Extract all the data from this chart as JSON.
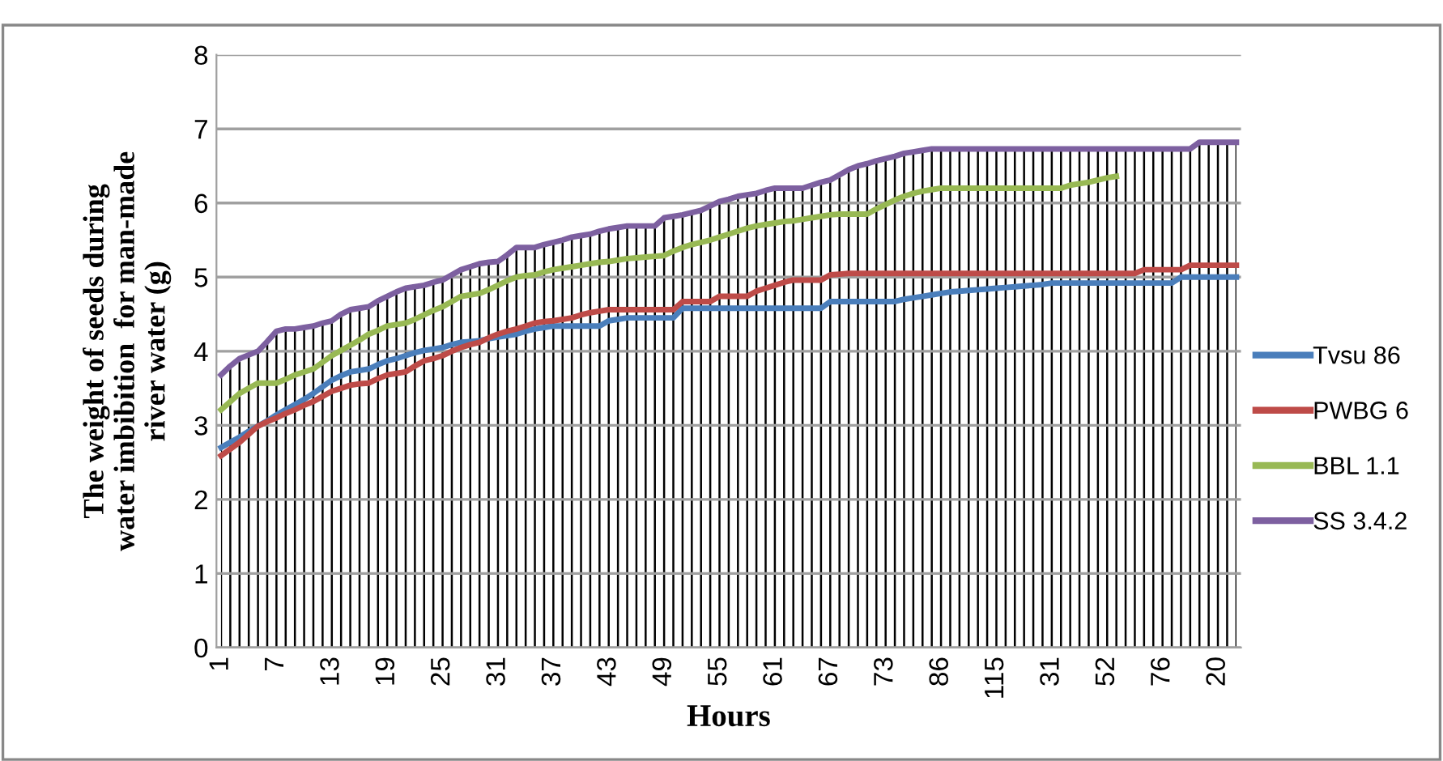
{
  "chart_data": {
    "type": "line",
    "xlabel": "Hours",
    "ylabel": "The weight of seeds during\nwater imbibition  for man-made\nriver water (g)",
    "categories": [
      "1",
      null,
      null,
      null,
      null,
      null,
      "7",
      null,
      null,
      null,
      null,
      null,
      "13",
      null,
      null,
      null,
      null,
      null,
      "19",
      null,
      null,
      null,
      null,
      null,
      "25",
      null,
      null,
      null,
      null,
      null,
      "31",
      null,
      null,
      null,
      null,
      null,
      "37",
      null,
      null,
      null,
      null,
      null,
      "43",
      null,
      null,
      null,
      null,
      null,
      "49",
      null,
      null,
      null,
      null,
      null,
      "55",
      null,
      null,
      null,
      null,
      null,
      "61",
      null,
      null,
      null,
      null,
      null,
      "67",
      null,
      null,
      null,
      null,
      null,
      "73",
      null,
      null,
      null,
      null,
      null,
      "86",
      null,
      null,
      null,
      null,
      null,
      "115",
      null,
      null,
      null,
      null,
      null,
      "31",
      null,
      null,
      null,
      null,
      null,
      "52",
      null,
      null,
      null,
      null,
      null,
      "76",
      null,
      null,
      null,
      null,
      null,
      "20",
      null,
      null
    ],
    "series": [
      {
        "name": "Tvsu 86",
        "color": "#4a7ebb",
        "values": [
          2.7,
          2.77,
          2.84,
          2.92,
          2.99,
          3.06,
          3.14,
          3.21,
          3.28,
          3.35,
          3.43,
          3.52,
          3.61,
          3.67,
          3.72,
          3.74,
          3.76,
          3.82,
          3.87,
          3.9,
          3.94,
          3.98,
          4.01,
          4.03,
          4.05,
          4.09,
          4.12,
          4.13,
          4.14,
          4.17,
          4.19,
          4.21,
          4.23,
          4.27,
          4.3,
          4.32,
          4.34,
          4.34,
          4.34,
          4.34,
          4.34,
          4.34,
          4.41,
          4.43,
          4.45,
          4.45,
          4.45,
          4.45,
          4.45,
          4.45,
          4.58,
          4.58,
          4.58,
          4.58,
          4.58,
          4.58,
          4.58,
          4.58,
          4.58,
          4.58,
          4.58,
          4.58,
          4.58,
          4.58,
          4.58,
          4.58,
          4.67,
          4.67,
          4.67,
          4.67,
          4.67,
          4.67,
          4.67,
          4.67,
          4.7,
          4.72,
          4.74,
          4.76,
          4.78,
          4.8,
          4.81,
          4.82,
          4.83,
          4.84,
          4.85,
          4.86,
          4.87,
          4.88,
          4.89,
          4.9,
          4.92,
          4.92,
          4.92,
          4.92,
          4.92,
          4.92,
          4.92,
          4.92,
          4.92,
          4.92,
          4.92,
          4.92,
          4.92,
          4.92,
          5.0,
          5.0,
          5.0,
          5.0,
          5.0,
          5.0,
          5.0
        ]
      },
      {
        "name": "PWBG 6",
        "color": "#be4b48",
        "values": [
          2.59,
          2.68,
          2.77,
          2.88,
          2.99,
          3.05,
          3.1,
          3.16,
          3.21,
          3.27,
          3.32,
          3.39,
          3.46,
          3.5,
          3.54,
          3.56,
          3.57,
          3.63,
          3.68,
          3.7,
          3.72,
          3.8,
          3.87,
          3.9,
          3.94,
          4.0,
          4.05,
          4.09,
          4.12,
          4.18,
          4.23,
          4.27,
          4.3,
          4.34,
          4.38,
          4.4,
          4.41,
          4.43,
          4.45,
          4.49,
          4.52,
          4.54,
          4.56,
          4.56,
          4.56,
          4.56,
          4.56,
          4.56,
          4.56,
          4.56,
          4.67,
          4.67,
          4.67,
          4.67,
          4.74,
          4.74,
          4.74,
          4.74,
          4.81,
          4.85,
          4.89,
          4.93,
          4.96,
          4.96,
          4.96,
          4.96,
          5.03,
          5.04,
          5.05,
          5.05,
          5.05,
          5.05,
          5.05,
          5.05,
          5.05,
          5.05,
          5.05,
          5.05,
          5.05,
          5.05,
          5.05,
          5.05,
          5.05,
          5.05,
          5.05,
          5.05,
          5.05,
          5.05,
          5.05,
          5.05,
          5.05,
          5.05,
          5.05,
          5.05,
          5.05,
          5.05,
          5.05,
          5.05,
          5.05,
          5.05,
          5.1,
          5.1,
          5.1,
          5.1,
          5.1,
          5.16,
          5.16,
          5.16,
          5.16,
          5.16,
          5.16
        ]
      },
      {
        "name": "BBL 1.1",
        "color": "#98b954",
        "values": [
          3.21,
          3.32,
          3.43,
          3.5,
          3.57,
          3.57,
          3.57,
          3.62,
          3.68,
          3.72,
          3.76,
          3.85,
          3.94,
          4.01,
          4.08,
          4.15,
          4.23,
          4.28,
          4.34,
          4.36,
          4.38,
          4.43,
          4.49,
          4.55,
          4.6,
          4.67,
          4.74,
          4.76,
          4.78,
          4.83,
          4.89,
          4.95,
          5.0,
          5.02,
          5.03,
          5.07,
          5.1,
          5.12,
          5.14,
          5.16,
          5.18,
          5.2,
          5.21,
          5.23,
          5.25,
          5.26,
          5.27,
          5.28,
          5.29,
          5.35,
          5.4,
          5.44,
          5.47,
          5.5,
          5.54,
          5.58,
          5.62,
          5.66,
          5.69,
          5.71,
          5.73,
          5.75,
          5.76,
          5.78,
          5.8,
          5.82,
          5.84,
          5.85,
          5.85,
          5.85,
          5.85,
          5.92,
          5.98,
          6.04,
          6.09,
          6.13,
          6.16,
          6.18,
          6.2,
          6.2,
          6.2,
          6.2,
          6.2,
          6.2,
          6.2,
          6.2,
          6.2,
          6.2,
          6.2,
          6.2,
          6.2,
          6.2,
          6.24,
          6.26,
          6.28,
          6.31,
          6.34,
          6.36,
          null,
          null,
          null,
          null,
          null,
          null,
          null,
          null,
          null,
          null,
          null,
          null,
          null
        ]
      },
      {
        "name": "SS 3.4.2",
        "color": "#7d60a0",
        "values": [
          3.68,
          3.8,
          3.9,
          3.95,
          4.0,
          4.13,
          4.27,
          4.3,
          4.3,
          4.32,
          4.34,
          4.38,
          4.41,
          4.5,
          4.56,
          4.58,
          4.6,
          4.68,
          4.74,
          4.8,
          4.85,
          4.87,
          4.89,
          4.93,
          4.96,
          5.03,
          5.1,
          5.14,
          5.18,
          5.2,
          5.21,
          5.3,
          5.4,
          5.4,
          5.4,
          5.44,
          5.47,
          5.5,
          5.54,
          5.56,
          5.58,
          5.62,
          5.65,
          5.67,
          5.69,
          5.69,
          5.69,
          5.69,
          5.8,
          5.82,
          5.84,
          5.87,
          5.9,
          5.96,
          6.02,
          6.05,
          6.09,
          6.11,
          6.13,
          6.17,
          6.2,
          6.2,
          6.2,
          6.2,
          6.24,
          6.28,
          6.31,
          6.38,
          6.45,
          6.5,
          6.53,
          6.57,
          6.6,
          6.63,
          6.67,
          6.69,
          6.71,
          6.73,
          6.73,
          6.73,
          6.73,
          6.73,
          6.73,
          6.73,
          6.73,
          6.73,
          6.73,
          6.73,
          6.73,
          6.73,
          6.73,
          6.73,
          6.73,
          6.73,
          6.73,
          6.73,
          6.73,
          6.73,
          6.73,
          6.73,
          6.73,
          6.73,
          6.73,
          6.73,
          6.73,
          6.73,
          6.82,
          6.82,
          6.82,
          6.82,
          6.82
        ]
      }
    ],
    "ylim": [
      0,
      8
    ],
    "yticks": [
      0,
      1,
      2,
      3,
      4,
      5,
      6,
      7,
      8
    ],
    "grid": true,
    "legend": "right",
    "marker": "none",
    "line_style": "solid"
  }
}
